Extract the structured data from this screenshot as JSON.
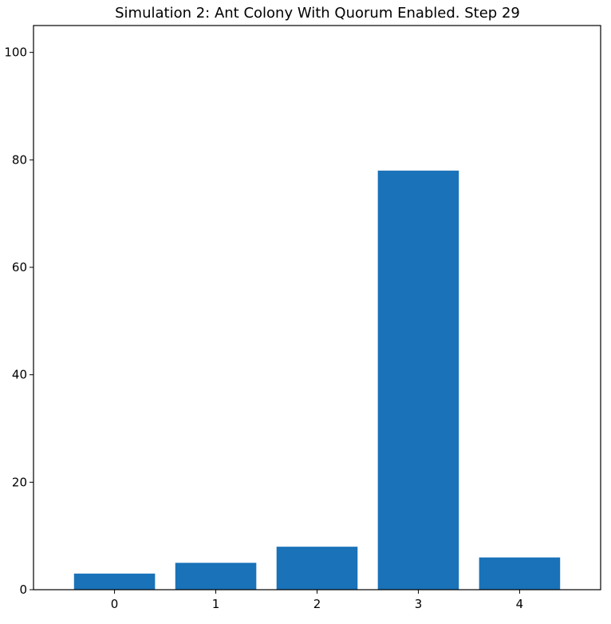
{
  "chart_data": {
    "type": "bar",
    "title": "Simulation 2: Ant Colony With Quorum Enabled. Step 29",
    "categories": [
      "0",
      "1",
      "2",
      "3",
      "4"
    ],
    "values": [
      3,
      5,
      8,
      78,
      6
    ],
    "xlabel": "",
    "ylabel": "",
    "ylim": [
      0,
      105
    ],
    "xlim": [
      -0.8,
      4.8
    ],
    "yticks": [
      0,
      20,
      40,
      60,
      80,
      100
    ],
    "ytick_labels": [
      "0",
      "20",
      "40",
      "60",
      "80",
      "100"
    ],
    "bar_color": "#1a72b8",
    "grid": false,
    "legend": "none"
  }
}
